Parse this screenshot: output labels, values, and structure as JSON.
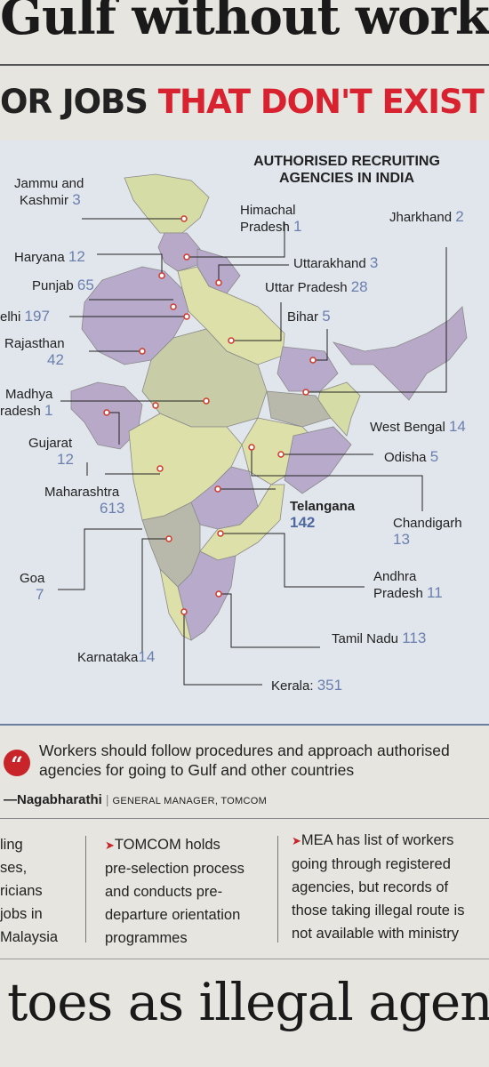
{
  "headline_top": "Gulf without work",
  "subhead": {
    "part1": "OR JOBS ",
    "part2": "THAT DON'T EXIST"
  },
  "map_title_line1": "AUTHORISED RECRUITING",
  "map_title_line2": "AGENCIES IN INDIA",
  "states": {
    "jk_name1": "Jammu and",
    "jk_name2": "Kashmir",
    "jk_count": "3",
    "hp_name1": "Himachal",
    "hp_name2": "Pradesh",
    "hp_count": "1",
    "jh_name": "Jharkhand",
    "jh_count": "2",
    "hr_name": "Haryana",
    "hr_count": "12",
    "uk_name": "Uttarakhand",
    "uk_count": "3",
    "pb_name": "Punjab",
    "pb_count": "65",
    "up_name": "Uttar Pradesh",
    "up_count": "28",
    "dl_name": "elhi",
    "dl_count": "197",
    "br_name": "Bihar",
    "br_count": "5",
    "rj_name": "Rajasthan",
    "rj_count": "42",
    "mp_name1": "Madhya",
    "mp_name2": "radesh",
    "mp_count": "1",
    "wb_name": "West Bengal",
    "wb_count": "14",
    "gj_name": "Gujarat",
    "gj_count": "12",
    "od_name": "Odisha",
    "od_count": "5",
    "mh_name": "Maharashtra",
    "mh_count": "613",
    "tg_name": "Telangana",
    "tg_count": "142",
    "ch_name": "Chandigarh",
    "ch_count": "13",
    "goa_name": "Goa",
    "goa_count": "7",
    "ap_name1": "Andhra",
    "ap_name2": "Pradesh",
    "ap_count": "11",
    "tn_name": "Tamil Nadu",
    "tn_count": "113",
    "ka_name": "Karnataka",
    "ka_count": "14",
    "kl_name": "Kerala:",
    "kl_count": "351"
  },
  "quote": "Workers should follow procedures and approach authorised agencies for going to Gulf and other countries",
  "attribution": {
    "name": "—Nagabharathi",
    "role": "GENERAL MANAGER, TOMCOM"
  },
  "columns": {
    "left": "ling\nses,\nricians\n jobs in\nMalaysia",
    "middle": "TOMCOM holds\npre-selection process\nand conducts pre-\ndeparture orientation\nprogrammes",
    "right": "MEA has list of workers\ngoing through registered\nagencies, but records of\nthose taking illegal route is\nnot available with ministry"
  },
  "headline_bottom": "toes as illegal agent",
  "colors": {
    "accent_red": "#d8222f",
    "number_blue": "#6b7fae",
    "map_bg": "#e1e6ec"
  }
}
